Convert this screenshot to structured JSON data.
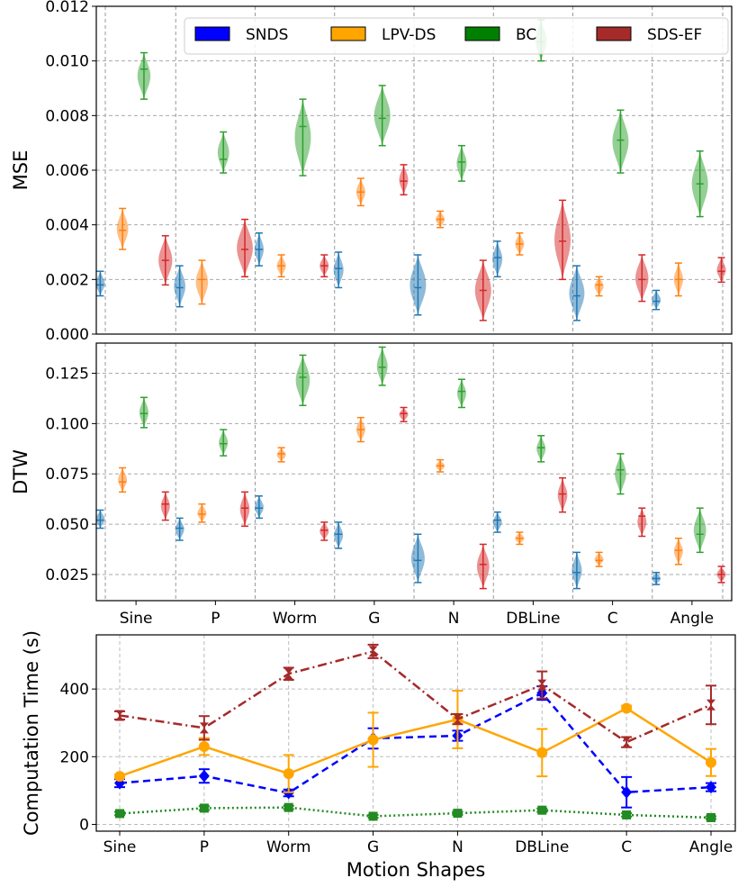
{
  "categories": [
    "Sine",
    "P",
    "Worm",
    "G",
    "N",
    "DBLine",
    "C",
    "Angle"
  ],
  "colors": {
    "SNDS": "#1f77b4",
    "LPV-DS": "#ff7f0e",
    "BC": "#2ca02c",
    "SDS-EF": "#d62728",
    "line_SNDS": "#0000ff",
    "line_LPV": "#ffa500",
    "line_BC": "#228b22",
    "line_SDSEF": "#a52a2a"
  },
  "legend": [
    {
      "label": "SNDS",
      "color": "#0000ff"
    },
    {
      "label": "LPV-DS",
      "color": "#ffa500"
    },
    {
      "label": "BC",
      "color": "#008000"
    },
    {
      "label": "SDS-EF",
      "color": "#a52a2a"
    }
  ],
  "chart_data": [
    {
      "type": "violin",
      "ylabel": "MSE",
      "ylim": [
        0,
        0.012
      ],
      "yticks": [
        "0.000",
        "0.002",
        "0.004",
        "0.006",
        "0.008",
        "0.010",
        "0.012"
      ],
      "series": [
        {
          "name": "SNDS",
          "median": [
            0.0018,
            0.0017,
            0.0031,
            0.0024,
            0.0017,
            0.0028,
            0.0014,
            0.0012
          ],
          "min": [
            0.0014,
            0.001,
            0.0025,
            0.0017,
            0.0007,
            0.0021,
            0.0005,
            0.0009
          ],
          "max": [
            0.0023,
            0.0025,
            0.0037,
            0.003,
            0.0029,
            0.0034,
            0.0025,
            0.0016
          ]
        },
        {
          "name": "LPV-DS",
          "median": [
            0.0038,
            0.002,
            0.0025,
            0.0052,
            0.0042,
            0.0033,
            0.0018,
            0.002
          ],
          "min": [
            0.0031,
            0.0011,
            0.0021,
            0.0047,
            0.0039,
            0.0029,
            0.0014,
            0.0014
          ],
          "max": [
            0.0046,
            0.0027,
            0.0029,
            0.0057,
            0.0045,
            0.0037,
            0.0021,
            0.0026
          ]
        },
        {
          "name": "BC",
          "median": [
            0.0097,
            0.0064,
            0.0076,
            0.0079,
            0.0063,
            0.0107,
            0.0071,
            0.0055
          ],
          "min": [
            0.0086,
            0.0059,
            0.0058,
            0.0069,
            0.0056,
            0.01,
            0.0059,
            0.0043
          ],
          "max": [
            0.0103,
            0.0074,
            0.0086,
            0.0091,
            0.0069,
            0.0115,
            0.0082,
            0.0067
          ]
        },
        {
          "name": "SDS-EF",
          "median": [
            0.0027,
            0.0031,
            0.0025,
            0.0056,
            0.0016,
            0.0034,
            0.002,
            0.0023
          ],
          "min": [
            0.0018,
            0.0021,
            0.0021,
            0.0051,
            0.0005,
            0.002,
            0.0012,
            0.0019
          ],
          "max": [
            0.0036,
            0.0042,
            0.0029,
            0.0062,
            0.0027,
            0.0049,
            0.0029,
            0.0028
          ]
        }
      ]
    },
    {
      "type": "violin",
      "ylabel": "DTW",
      "ylim": [
        0.012,
        0.14
      ],
      "yticks": [
        "0.025",
        "0.050",
        "0.075",
        "0.100",
        "0.125"
      ],
      "series": [
        {
          "name": "SNDS",
          "median": [
            0.052,
            0.048,
            0.058,
            0.045,
            0.032,
            0.052,
            0.026,
            0.023
          ],
          "min": [
            0.048,
            0.042,
            0.053,
            0.038,
            0.021,
            0.046,
            0.018,
            0.02
          ],
          "max": [
            0.057,
            0.053,
            0.064,
            0.051,
            0.045,
            0.056,
            0.036,
            0.026
          ]
        },
        {
          "name": "LPV-DS",
          "median": [
            0.071,
            0.055,
            0.085,
            0.097,
            0.079,
            0.043,
            0.032,
            0.037
          ],
          "min": [
            0.066,
            0.051,
            0.081,
            0.091,
            0.076,
            0.04,
            0.029,
            0.03
          ],
          "max": [
            0.078,
            0.06,
            0.088,
            0.103,
            0.082,
            0.046,
            0.036,
            0.043
          ]
        },
        {
          "name": "BC",
          "median": [
            0.105,
            0.09,
            0.123,
            0.128,
            0.116,
            0.088,
            0.077,
            0.045
          ],
          "min": [
            0.098,
            0.084,
            0.109,
            0.119,
            0.108,
            0.081,
            0.065,
            0.036
          ],
          "max": [
            0.113,
            0.097,
            0.134,
            0.138,
            0.122,
            0.094,
            0.085,
            0.058
          ]
        },
        {
          "name": "SDS-EF",
          "median": [
            0.06,
            0.058,
            0.047,
            0.105,
            0.03,
            0.065,
            0.054,
            0.025
          ],
          "min": [
            0.052,
            0.049,
            0.042,
            0.101,
            0.018,
            0.056,
            0.044,
            0.021
          ],
          "max": [
            0.066,
            0.066,
            0.051,
            0.108,
            0.04,
            0.073,
            0.058,
            0.029
          ]
        }
      ]
    },
    {
      "type": "line",
      "ylabel": "Computation Time (s)",
      "xlabel": "Motion Shapes",
      "ylim": [
        -20,
        560
      ],
      "yticks": [
        "0",
        "200",
        "400"
      ],
      "series": [
        {
          "name": "SNDS",
          "values": [
            122,
            143,
            93,
            254,
            262,
            388,
            95,
            110
          ],
          "err": [
            12,
            20,
            10,
            30,
            15,
            20,
            45,
            12
          ]
        },
        {
          "name": "LPV-DS",
          "values": [
            142,
            230,
            150,
            250,
            310,
            212,
            343,
            183
          ],
          "err": [
            5,
            25,
            55,
            80,
            85,
            70,
            8,
            40
          ]
        },
        {
          "name": "BC",
          "values": [
            32,
            48,
            50,
            24,
            33,
            42,
            28,
            20
          ],
          "err": [
            5,
            6,
            5,
            4,
            5,
            5,
            5,
            4
          ]
        },
        {
          "name": "SDS-EF",
          "values": [
            322,
            285,
            445,
            511,
            311,
            412,
            243,
            353
          ],
          "err": [
            12,
            35,
            18,
            20,
            15,
            40,
            15,
            57
          ]
        }
      ]
    }
  ]
}
